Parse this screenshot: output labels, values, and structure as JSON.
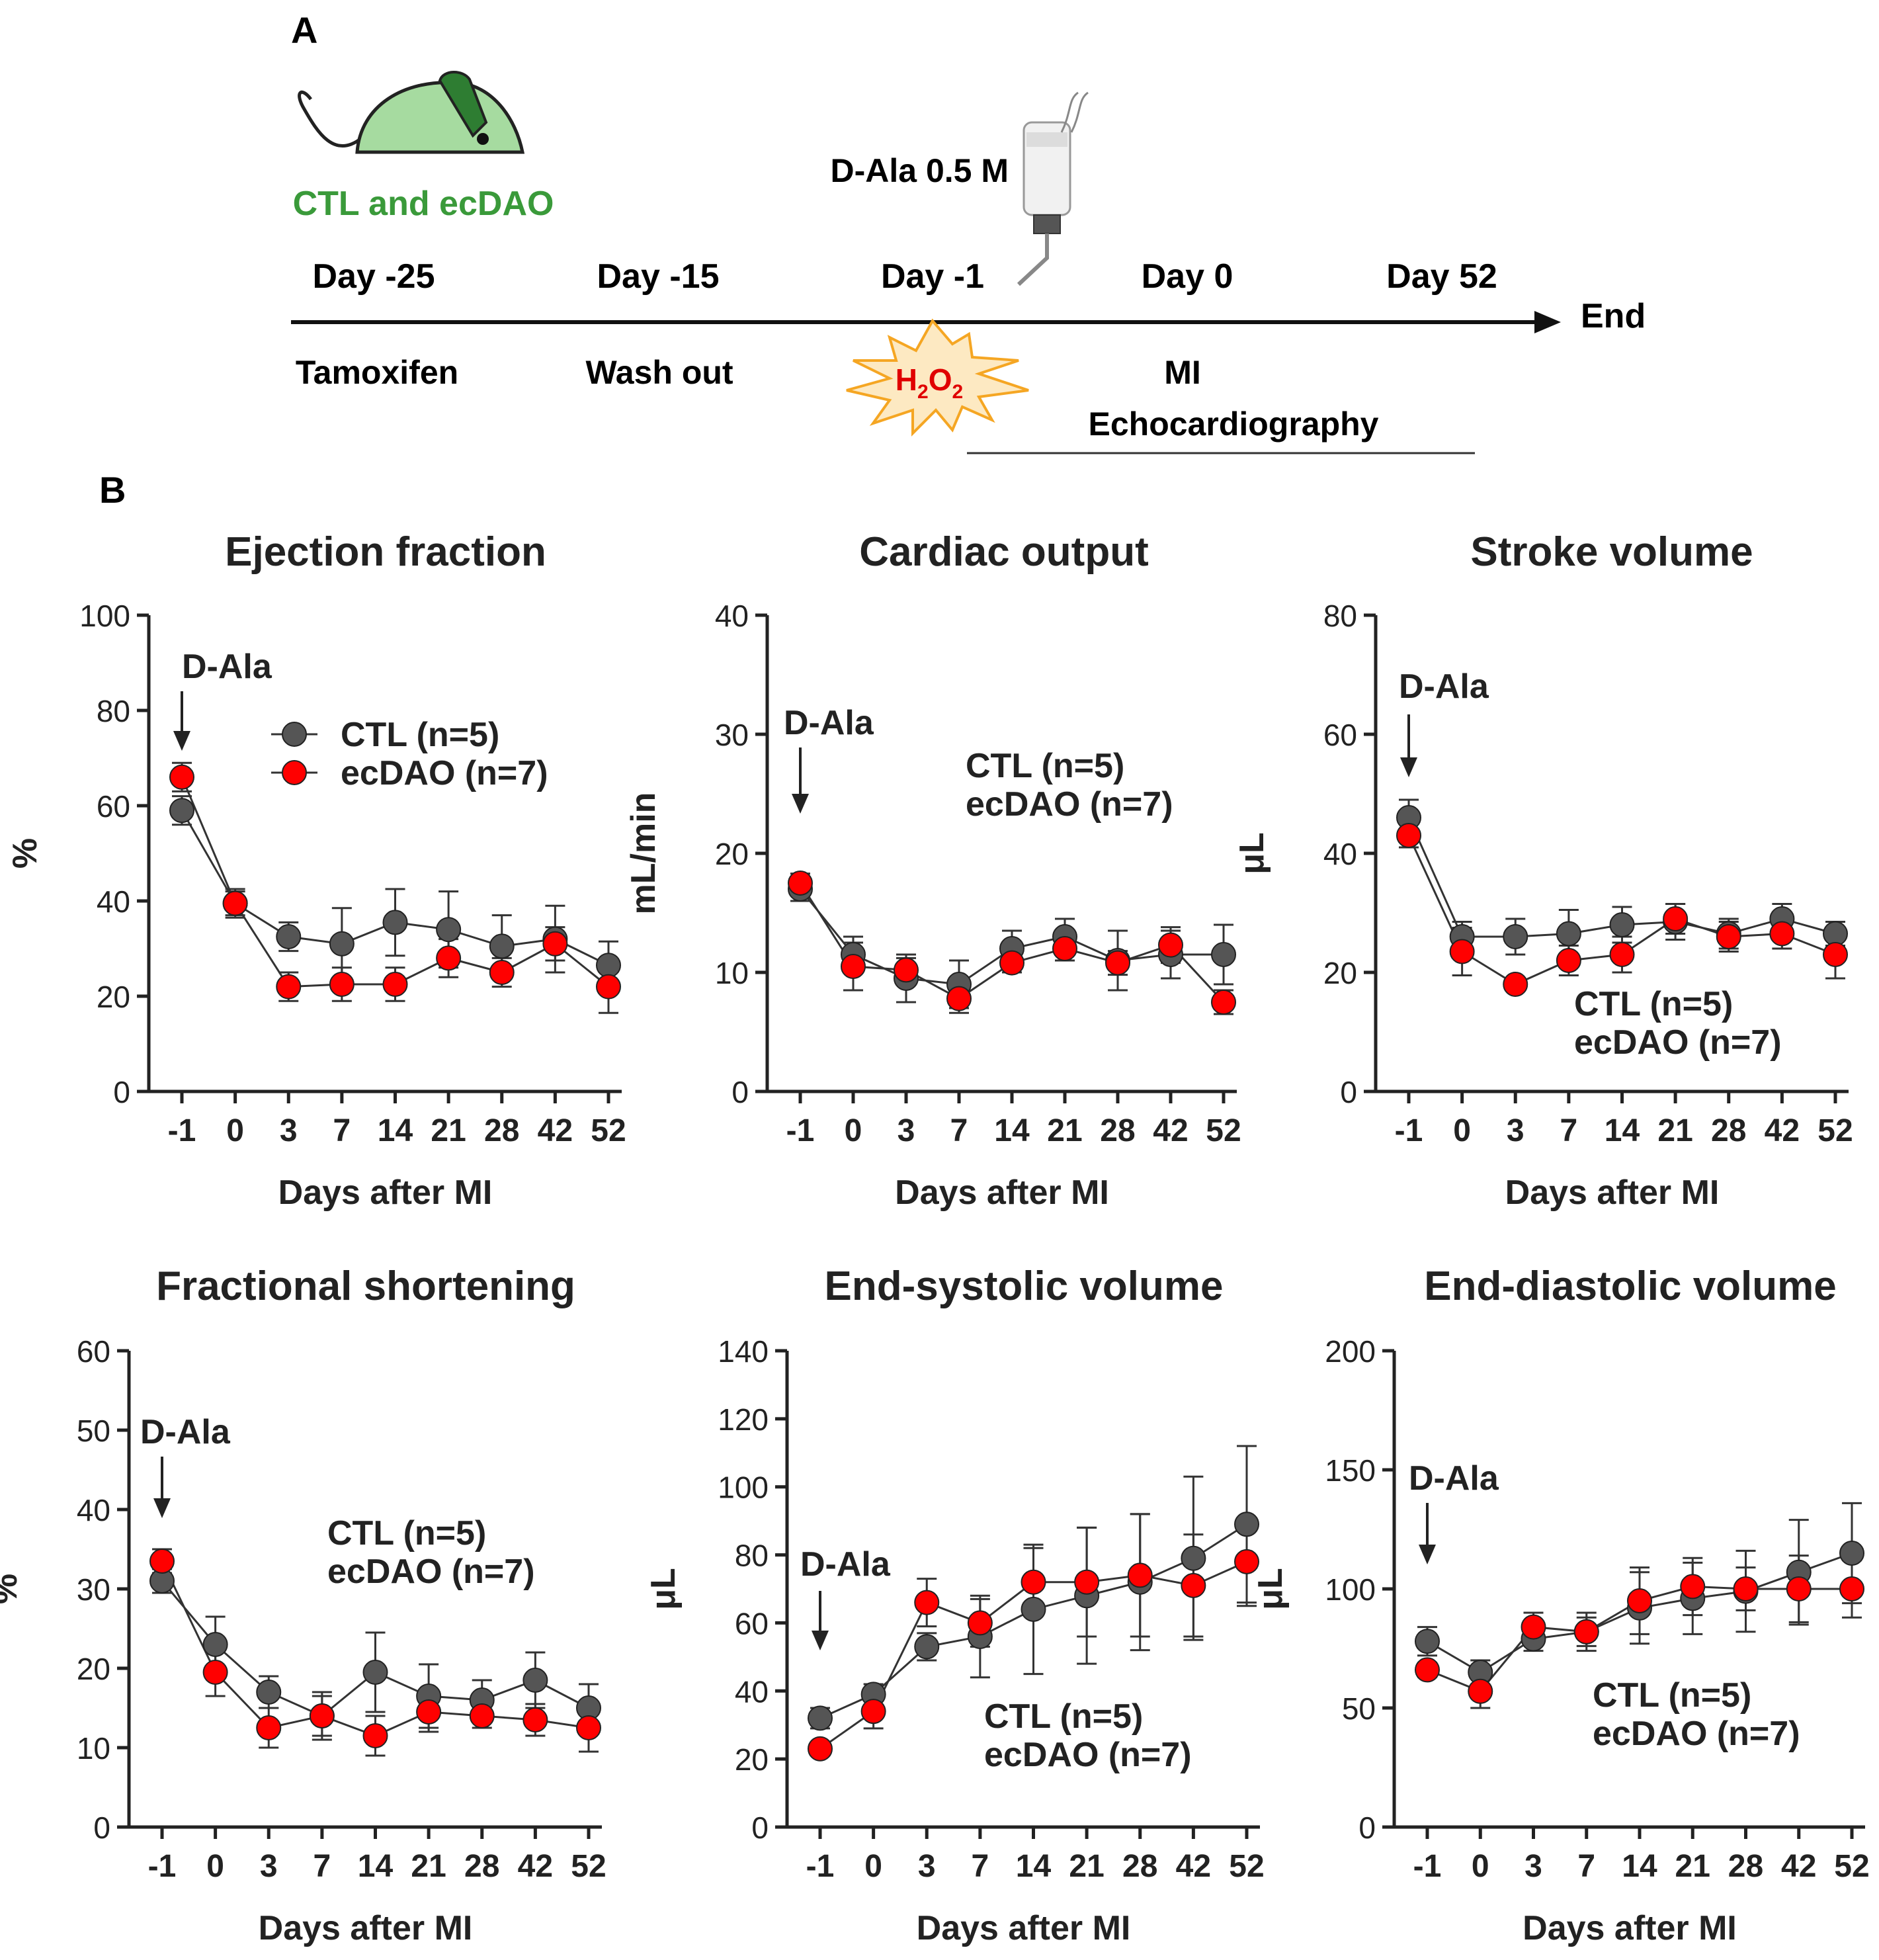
{
  "panel_a": {
    "label": "A",
    "mouse_label": "CTL and ecDAO",
    "dala_label": "D-Ala 0.5 M",
    "days": [
      "Day -25",
      "Day -15",
      "Day -1",
      "Day 0",
      "Day 52"
    ],
    "end_label": "End",
    "events": [
      "Tamoxifen",
      "Wash out",
      "MI",
      "Echocardiography"
    ],
    "h2o2": {
      "H": "H",
      "sub1": "2",
      "O": "O",
      "sub2": "2"
    },
    "colors": {
      "mouse": "#a6dba0",
      "mouse_ear": "#2e7d32",
      "label_green": "#3a9a3a",
      "burst": "#fde9c2",
      "burst_stroke": "#f5a623",
      "h2o2_text": "#e00000"
    }
  },
  "panel_b": {
    "label": "B"
  },
  "series_style": {
    "ctl": {
      "name": "CTL (n=5)",
      "color": "#555555"
    },
    "ecdao": {
      "name": "ecDAO (n=7)",
      "color": "#ff0000"
    }
  },
  "chart_data": [
    {
      "type": "line",
      "title": "Ejection fraction",
      "ylabel": "%",
      "xlabel": "Days after MI",
      "categories": [
        "-1",
        "0",
        "3",
        "7",
        "14",
        "21",
        "28",
        "42",
        "52"
      ],
      "ylim": [
        0,
        100
      ],
      "yticks": [
        0,
        20,
        40,
        60,
        80,
        100
      ],
      "annotation": "D-Ala",
      "legend_text": [
        "CTL (n=5)",
        "ecDAO (n=7)"
      ],
      "series": [
        {
          "name": "CTL (n=5)",
          "values": [
            59,
            39.5,
            32.5,
            31,
            35.5,
            34,
            30.5,
            32,
            26.5
          ],
          "err": [
            3,
            3,
            3,
            7.5,
            7,
            8,
            6.5,
            7,
            5
          ]
        },
        {
          "name": "ecDAO (n=7)",
          "values": [
            66,
            39.5,
            22,
            22.5,
            22.5,
            28,
            25,
            31,
            22
          ],
          "err": [
            3,
            2.5,
            3,
            3.5,
            3.5,
            4,
            3,
            3.5,
            5.5
          ]
        }
      ]
    },
    {
      "type": "line",
      "title": "Cardiac output",
      "ylabel": "mL/min",
      "xlabel": "Days after MI",
      "categories": [
        "-1",
        "0",
        "3",
        "7",
        "14",
        "21",
        "28",
        "42",
        "52"
      ],
      "ylim": [
        0,
        40
      ],
      "yticks": [
        0,
        10,
        20,
        30,
        40
      ],
      "annotation": "D-Ala",
      "legend_text": [
        "CTL (n=5)",
        "ecDAO (n=7)"
      ],
      "series": [
        {
          "name": "CTL (n=5)",
          "values": [
            17,
            11.5,
            9.5,
            9,
            12,
            13,
            11,
            11.5,
            11.5
          ],
          "err": [
            1,
            1.5,
            2,
            2,
            1.5,
            1.5,
            2.5,
            2,
            2.5
          ]
        },
        {
          "name": "ecDAO (n=7)",
          "values": [
            17.5,
            10.5,
            10.2,
            7.8,
            10.8,
            12,
            10.8,
            12.3,
            7.5
          ],
          "err": [
            0.8,
            2,
            1,
            1.2,
            0.8,
            1,
            1,
            1.5,
            1
          ]
        }
      ]
    },
    {
      "type": "line",
      "title": "Stroke volume",
      "ylabel": "μL",
      "xlabel": "Days after MI",
      "categories": [
        "-1",
        "0",
        "3",
        "7",
        "14",
        "21",
        "28",
        "42",
        "52"
      ],
      "ylim": [
        0,
        80
      ],
      "yticks": [
        0,
        20,
        40,
        60,
        80
      ],
      "annotation": "D-Ala",
      "legend_text": [
        "CTL (n=5)",
        "ecDAO (n=7)"
      ],
      "series": [
        {
          "name": "CTL (n=5)",
          "values": [
            46,
            26,
            26,
            26.5,
            28,
            28.5,
            26.5,
            29,
            26.5
          ],
          "err": [
            3,
            2.5,
            3,
            4,
            3,
            3,
            2.5,
            2.5,
            2
          ]
        },
        {
          "name": "ecDAO (n=7)",
          "values": [
            43,
            23.5,
            18,
            22,
            23,
            29,
            26,
            26.5,
            23
          ],
          "err": [
            2,
            4,
            1,
            2.5,
            3,
            2.5,
            2.5,
            2.5,
            4
          ]
        }
      ]
    },
    {
      "type": "line",
      "title": "Fractional shortening",
      "ylabel": "%",
      "xlabel": "Days after MI",
      "categories": [
        "-1",
        "0",
        "3",
        "7",
        "14",
        "21",
        "28",
        "42",
        "52"
      ],
      "ylim": [
        0,
        60
      ],
      "yticks": [
        0,
        10,
        20,
        30,
        40,
        50,
        60
      ],
      "annotation": "D-Ala",
      "legend_text": [
        "CTL (n=5)",
        "ecDAO (n=7)"
      ],
      "series": [
        {
          "name": "CTL (n=5)",
          "values": [
            31,
            23,
            17,
            14,
            19.5,
            16.5,
            16,
            18.5,
            15
          ],
          "err": [
            1.5,
            3.5,
            2,
            3,
            5,
            4,
            2.5,
            3.5,
            3
          ]
        },
        {
          "name": "ecDAO (n=7)",
          "values": [
            33.5,
            19.5,
            12.5,
            14,
            11.5,
            14.5,
            14,
            13.5,
            12.5
          ],
          "err": [
            1.5,
            3,
            2.5,
            2.5,
            2.5,
            2.5,
            1.5,
            2,
            3
          ]
        }
      ]
    },
    {
      "type": "line",
      "title": "End-systolic volume",
      "ylabel": "μL",
      "xlabel": "Days after MI",
      "categories": [
        "-1",
        "0",
        "3",
        "7",
        "14",
        "21",
        "28",
        "42",
        "52"
      ],
      "ylim": [
        0,
        140
      ],
      "yticks": [
        0,
        20,
        40,
        60,
        80,
        100,
        120,
        140
      ],
      "annotation": "D-Ala",
      "legend_text": [
        "CTL (n=5)",
        "ecDAO (n=7)"
      ],
      "series": [
        {
          "name": "CTL (n=5)",
          "values": [
            32,
            39,
            53,
            56,
            64,
            68,
            72,
            79,
            89
          ],
          "err": [
            3,
            3,
            4,
            12,
            19,
            20,
            20,
            24,
            23
          ]
        },
        {
          "name": "ecDAO (n=7)",
          "values": [
            23,
            34,
            66,
            60,
            72,
            72,
            74,
            71,
            78
          ],
          "err": [
            1.5,
            5,
            7,
            7,
            10,
            16,
            18,
            15,
            13
          ]
        }
      ]
    },
    {
      "type": "line",
      "title": "End-diastolic volume",
      "ylabel": "μL",
      "xlabel": "Days after MI",
      "categories": [
        "-1",
        "0",
        "3",
        "7",
        "14",
        "21",
        "28",
        "42",
        "52"
      ],
      "ylim": [
        0,
        200
      ],
      "yticks": [
        0,
        50,
        100,
        150,
        200
      ],
      "annotation": "D-Ala",
      "legend_text": [
        "CTL (n=5)",
        "ecDAO (n=7)"
      ],
      "series": [
        {
          "name": "CTL (n=5)",
          "values": [
            78,
            65,
            79,
            82,
            92,
            96,
            99,
            107,
            115
          ],
          "err": [
            6,
            5,
            5,
            8,
            15,
            15,
            17,
            22,
            21
          ]
        },
        {
          "name": "ecDAO (n=7)",
          "values": [
            66,
            57,
            84,
            82,
            95,
            101,
            100,
            100,
            100
          ],
          "err": [
            3,
            7,
            6,
            6,
            14,
            12,
            9,
            14,
            12
          ]
        }
      ]
    }
  ]
}
